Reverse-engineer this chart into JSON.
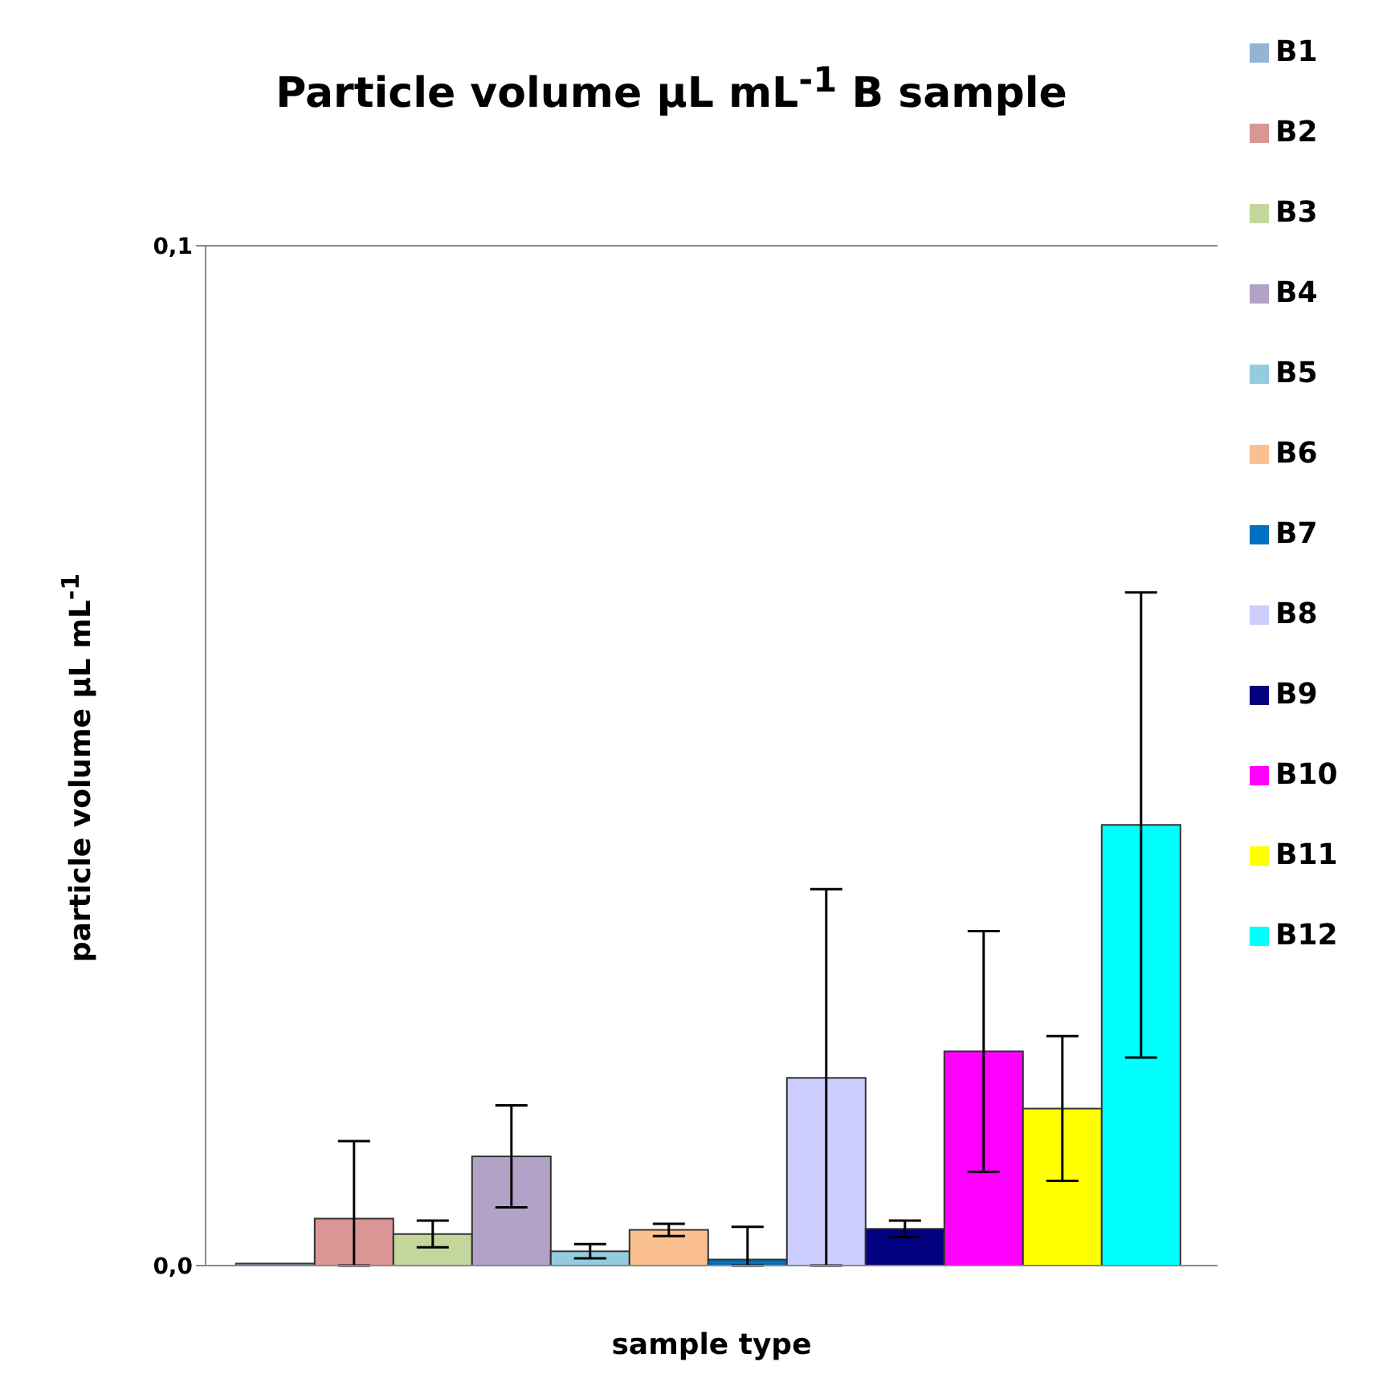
{
  "chart_data": {
    "type": "bar",
    "title": "Particle volume µL mL$^{-1}$ B sample",
    "xlabel": "sample type",
    "ylabel": "particle volume µL mL$^{-1}$",
    "categories": [
      null
    ],
    "series": [
      {
        "name": "B1",
        "color": "#95b3d7",
        "values": [
          0.0002
        ]
      },
      {
        "name": "B2",
        "color": "#d99694",
        "values": [
          0.0046
        ],
        "errors": [
          [
            0,
            0.0122
          ]
        ]
      },
      {
        "name": "B3",
        "color": "#c3d69b",
        "values": [
          0.0031
        ],
        "errors": [
          0.0013
        ]
      },
      {
        "name": "B4",
        "color": "#b3a2c7",
        "values": [
          0.0107
        ],
        "errors": [
          0.005
        ]
      },
      {
        "name": "B5",
        "color": "#93cddd",
        "values": [
          0.0014
        ],
        "errors": [
          0.0007
        ]
      },
      {
        "name": "B6",
        "color": "#fac090",
        "values": [
          0.0035
        ],
        "errors": [
          0.0006
        ]
      },
      {
        "name": "B7",
        "color": "#0070c0",
        "values": [
          0.0006
        ],
        "errors": [
          [
            0,
            0.0038
          ]
        ]
      },
      {
        "name": "B8",
        "color": "#ccccff",
        "values": [
          0.0184
        ],
        "errors": [
          [
            0,
            0.0369
          ]
        ]
      },
      {
        "name": "B9",
        "color": "#000080",
        "values": [
          0.0036
        ],
        "errors": [
          0.0008
        ]
      },
      {
        "name": "B10",
        "color": "#ff00ff",
        "values": [
          0.021
        ],
        "errors": [
          0.0118
        ]
      },
      {
        "name": "B11",
        "color": "#ffff00",
        "values": [
          0.0154
        ],
        "errors": [
          0.0071
        ]
      },
      {
        "name": "B12",
        "color": "#00ffff",
        "values": [
          0.0432
        ],
        "errors": [
          0.0228
        ]
      }
    ],
    "ylim": [
      0,
      0.1
    ],
    "yticks": [
      {
        "value": 0,
        "label": "0,0"
      },
      {
        "value": 0.1,
        "label": "0,1"
      }
    ],
    "grid": "y",
    "legend": "right"
  }
}
